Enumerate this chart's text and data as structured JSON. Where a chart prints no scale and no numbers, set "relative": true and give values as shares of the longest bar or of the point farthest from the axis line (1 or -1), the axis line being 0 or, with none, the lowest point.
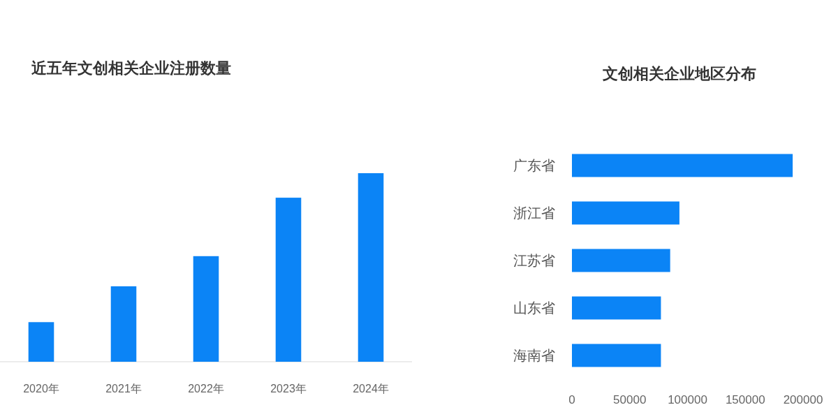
{
  "chart_data": [
    {
      "type": "bar",
      "title": "近五年文创相关企业注册数量",
      "categories": [
        "2020年",
        "2021年",
        "2022年",
        "2023年",
        "2024年"
      ],
      "values": [
        0.21,
        0.4,
        0.56,
        0.87,
        1
      ],
      "color": "#0b84f6",
      "relative": true
    },
    {
      "type": "bar",
      "orientation": "horizontal",
      "title": "文创相关企业地区分布",
      "categories": [
        "广东省",
        "浙江省",
        "江苏省",
        "山东省",
        "海南省"
      ],
      "values": [
        191000,
        93000,
        85000,
        77000,
        77000
      ],
      "color": "#0b84f6",
      "xlim": [
        0,
        200000
      ],
      "xticks": [
        0,
        50000,
        100000,
        150000,
        200000
      ]
    }
  ]
}
